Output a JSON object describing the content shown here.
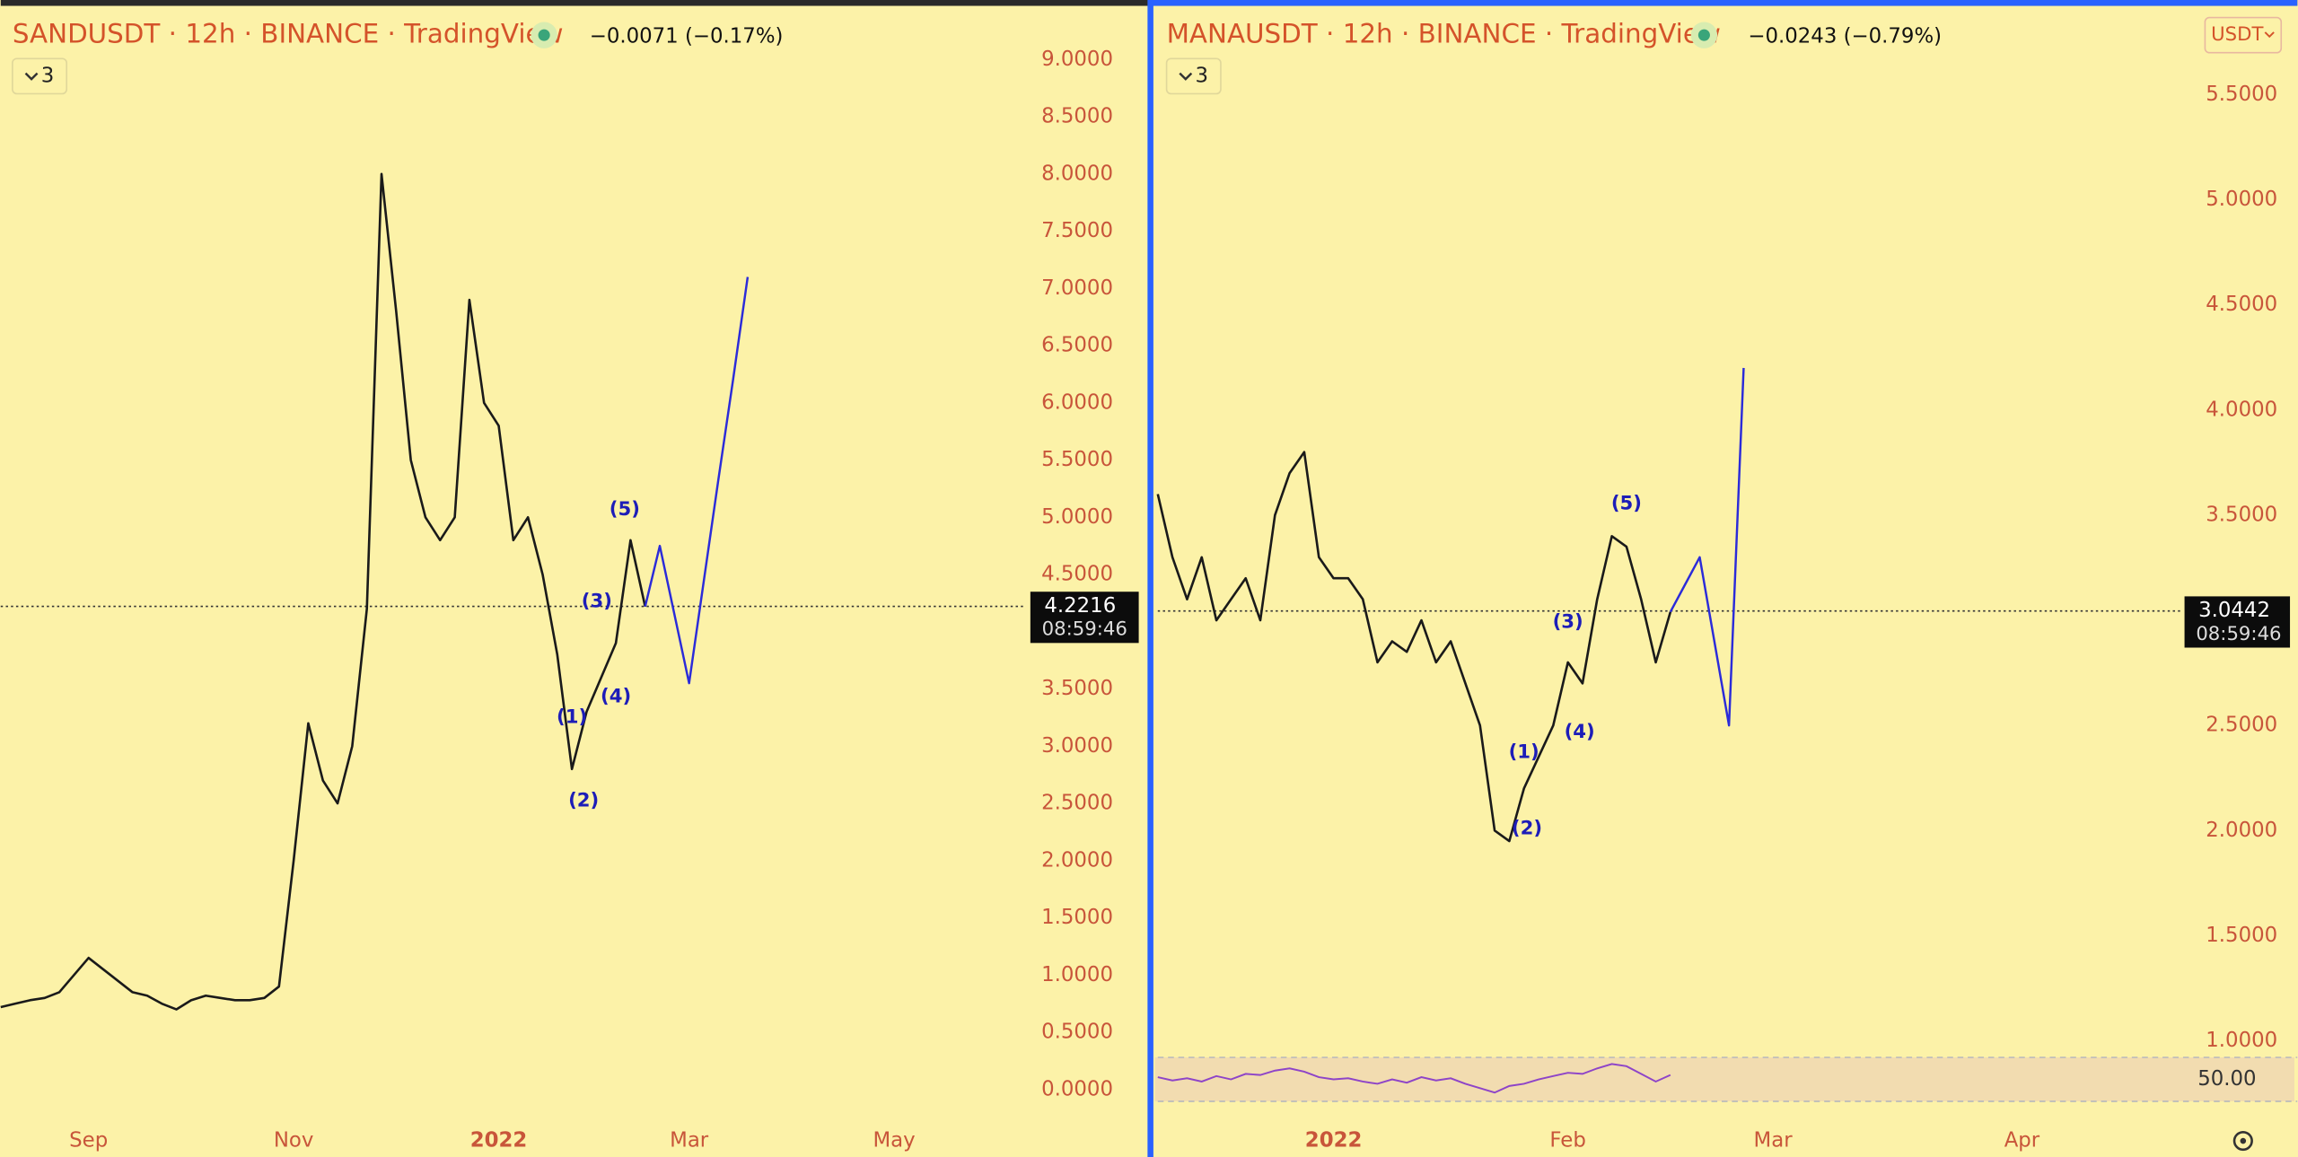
{
  "chart_data": [
    {
      "type": "line",
      "title": "SANDUSDT · 12h · BINANCE · TradingView",
      "change": "−0.0071 (−0.17%)",
      "interval_button": "3",
      "categories": [
        null,
        null,
        null,
        null,
        null,
        null,
        "Sep",
        null,
        null,
        null,
        null,
        null,
        null,
        null,
        null,
        null,
        null,
        null,
        null,
        null,
        "Nov",
        null,
        null,
        null,
        null,
        null,
        null,
        null,
        null,
        null,
        null,
        null,
        null,
        null,
        "2022",
        null,
        null,
        null,
        null,
        null,
        null,
        null,
        null,
        null,
        null,
        null,
        null,
        "Mar",
        null,
        null,
        null,
        null,
        null,
        null,
        null,
        null,
        null,
        null,
        null,
        null,
        null,
        "May",
        null,
        null,
        null,
        null,
        null,
        null,
        null,
        null
      ],
      "series": [
        {
          "color": "#1a1a1a",
          "values": [
            0.72,
            0.75,
            0.78,
            0.8,
            0.85,
            1.0,
            1.15,
            1.05,
            0.95,
            0.85,
            0.82,
            0.75,
            0.7,
            0.78,
            0.82,
            0.8,
            0.78,
            0.78,
            0.8,
            0.9,
            2.0,
            3.2,
            2.7,
            2.5,
            3.0,
            4.2,
            8.0,
            6.8,
            5.5,
            5.0,
            4.8,
            5.0,
            6.9,
            6.0,
            5.8,
            4.8,
            5.0,
            4.5,
            3.8,
            2.8,
            3.3,
            3.6,
            3.9,
            4.8,
            4.22,
            null,
            null,
            null,
            null,
            null,
            null,
            null,
            null,
            null,
            null,
            null,
            null,
            null,
            null,
            null,
            null,
            null,
            null,
            null,
            null,
            null,
            null,
            null,
            null,
            null
          ]
        },
        {
          "color": "#2b2bd9",
          "values": [
            null,
            null,
            null,
            null,
            null,
            null,
            null,
            null,
            null,
            null,
            null,
            null,
            null,
            null,
            null,
            null,
            null,
            null,
            null,
            null,
            null,
            null,
            null,
            null,
            null,
            null,
            null,
            null,
            null,
            null,
            null,
            null,
            null,
            null,
            null,
            null,
            null,
            null,
            null,
            null,
            null,
            null,
            null,
            null,
            4.22,
            4.75,
            4.15,
            3.55,
            4.44,
            5.33,
            6.2,
            7.1,
            null,
            null,
            null,
            null,
            null,
            null,
            null,
            null,
            null,
            null,
            null,
            null,
            null,
            null,
            null,
            null,
            null,
            null
          ]
        }
      ],
      "ylim": [
        -0.27,
        9.52
      ],
      "yticks": [
        {
          "value": 0,
          "label": "0.0000"
        },
        {
          "value": 0.5,
          "label": "0.5000"
        },
        {
          "value": 1,
          "label": "1.0000"
        },
        {
          "value": 1.5,
          "label": "1.5000"
        },
        {
          "value": 2,
          "label": "2.0000"
        },
        {
          "value": 2.5,
          "label": "2.5000"
        },
        {
          "value": 3,
          "label": "3.0000"
        },
        {
          "value": 3.5,
          "label": "3.5000"
        },
        {
          "value": 4,
          "label": "4.0000"
        },
        {
          "value": 4.5,
          "label": "4.5000"
        },
        {
          "value": 5,
          "label": "5.0000"
        },
        {
          "value": 5.5,
          "label": "5.5000"
        },
        {
          "value": 6,
          "label": "6.0000"
        },
        {
          "value": 6.5,
          "label": "6.5000"
        },
        {
          "value": 7,
          "label": "7.0000"
        },
        {
          "value": 7.5,
          "label": "7.5000"
        },
        {
          "value": 8,
          "label": "8.0000"
        },
        {
          "value": 8.5,
          "label": "8.5000"
        },
        {
          "value": 9,
          "label": "9.0000"
        }
      ],
      "last_price": {
        "value": 4.2216,
        "label": "4.2216"
      },
      "countdown": "08:59:46",
      "wave_labels": [
        "(1)",
        "(2)",
        "(3)",
        "(4)",
        "(5)"
      ]
    },
    {
      "type": "line",
      "title": "MANAUSDT · 12h · BINANCE · TradingView",
      "change": "−0.0243 (−0.79%)",
      "interval_button": "3",
      "currency": "USDT",
      "categories": [
        null,
        null,
        null,
        null,
        null,
        null,
        null,
        null,
        null,
        null,
        null,
        null,
        "2022",
        null,
        null,
        null,
        null,
        null,
        null,
        null,
        null,
        null,
        null,
        null,
        null,
        null,
        null,
        null,
        "Feb",
        null,
        null,
        null,
        null,
        null,
        null,
        null,
        null,
        null,
        null,
        null,
        null,
        null,
        "Mar",
        null,
        null,
        null,
        null,
        null,
        null,
        null,
        null,
        null,
        null,
        null,
        null,
        null,
        null,
        null,
        null,
        "Apr",
        null,
        null,
        null,
        null,
        null,
        null,
        null,
        null,
        null,
        null
      ],
      "series": [
        {
          "color": "#1a1a1a",
          "values": [
            3.6,
            3.3,
            3.1,
            3.3,
            3.0,
            3.1,
            3.2,
            3.0,
            3.5,
            3.7,
            3.8,
            3.3,
            3.2,
            3.2,
            3.1,
            2.8,
            2.9,
            2.85,
            3.0,
            2.8,
            2.9,
            2.7,
            2.5,
            2.0,
            1.95,
            2.2,
            2.35,
            2.5,
            2.8,
            2.7,
            3.1,
            3.4,
            3.35,
            3.1,
            2.8,
            3.04,
            null,
            null,
            null,
            null,
            null,
            null,
            null,
            null,
            null,
            null,
            null,
            null,
            null,
            null,
            null,
            null,
            null,
            null,
            null,
            null,
            null,
            null,
            null,
            null,
            null,
            null,
            null,
            null,
            null,
            null,
            null,
            null,
            null,
            null
          ]
        },
        {
          "color": "#2b2bd9",
          "values": [
            null,
            null,
            null,
            null,
            null,
            null,
            null,
            null,
            null,
            null,
            null,
            null,
            null,
            null,
            null,
            null,
            null,
            null,
            null,
            null,
            null,
            null,
            null,
            null,
            null,
            null,
            null,
            null,
            null,
            null,
            null,
            null,
            null,
            null,
            null,
            3.04,
            3.17,
            3.3,
            2.9,
            2.5,
            4.2,
            null,
            null,
            null,
            null,
            null,
            null,
            null,
            null,
            null,
            null,
            null,
            null,
            null,
            null,
            null,
            null,
            null,
            null,
            null,
            null,
            null,
            null,
            null,
            null,
            null,
            null,
            null,
            null,
            null
          ]
        }
      ],
      "ylim": [
        0.97,
        5.95
      ],
      "yticks": [
        {
          "value": 1,
          "label": "1.0000"
        },
        {
          "value": 1.5,
          "label": "1.5000"
        },
        {
          "value": 2,
          "label": "2.0000"
        },
        {
          "value": 2.5,
          "label": "2.5000"
        },
        {
          "value": 3,
          "label": "3.0000"
        },
        {
          "value": 3.5,
          "label": "3.5000"
        },
        {
          "value": 4,
          "label": "4.0000"
        },
        {
          "value": 4.5,
          "label": "4.5000"
        },
        {
          "value": 5,
          "label": "5.0000"
        },
        {
          "value": 5.5,
          "label": "5.5000"
        }
      ],
      "last_price": {
        "value": 3.0442,
        "label": "3.0442"
      },
      "countdown": "08:59:46",
      "wave_labels": [
        "(1)",
        "(2)",
        "(3)",
        "(4)",
        "(5)"
      ],
      "rsi": {
        "color": "#8e44c8",
        "level": {
          "value": 50,
          "label": "50.00"
        },
        "values": [
          52,
          49,
          51,
          48,
          53,
          50,
          55,
          54,
          58,
          60,
          57,
          52,
          50,
          51,
          48,
          46,
          50,
          47,
          52,
          49,
          51,
          46,
          42,
          38,
          44,
          46,
          50,
          53,
          56,
          55,
          60,
          64,
          62,
          55,
          48,
          54
        ]
      }
    }
  ]
}
